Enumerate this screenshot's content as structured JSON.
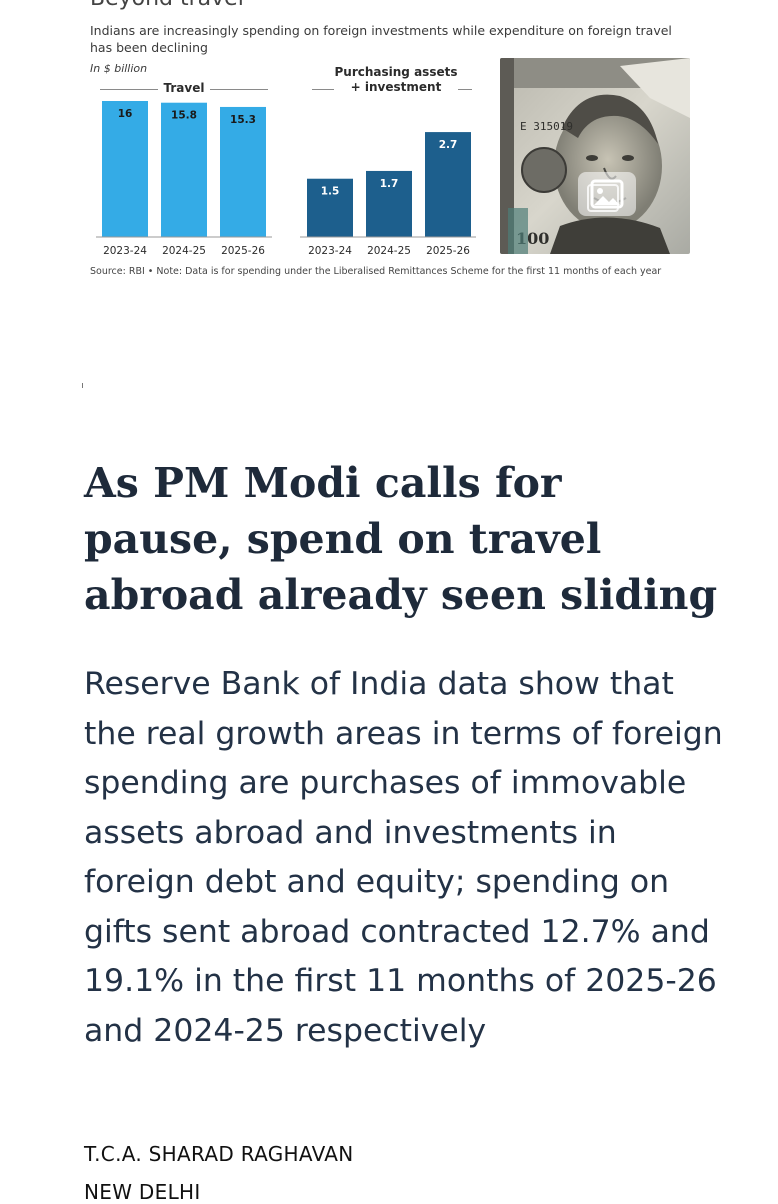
{
  "chart": {
    "title": "Beyond travel",
    "subtitle": "Indians are increasingly spending on foreign investments while expenditure on foreign travel has been declining",
    "unit": "In $ billion",
    "source": "Source: RBI • Note: Data is for spending under the Liberalised Remittances Scheme for the first 11 months of each year",
    "colors": {
      "travel": "#34abe6",
      "investment": "#1d5f8d"
    }
  },
  "chart_data": [
    {
      "type": "bar",
      "title": "Travel",
      "categories": [
        "2023-24",
        "2024-25",
        "2025-26"
      ],
      "values": [
        16,
        15.8,
        15.3
      ],
      "value_labels": [
        "16",
        "15.8",
        "15.3"
      ],
      "ylim": [
        0,
        16
      ]
    },
    {
      "type": "bar",
      "title": "Purchasing assets + investment",
      "title_lines": [
        "Purchasing assets",
        "+ investment"
      ],
      "categories": [
        "2023-24",
        "2024-25",
        "2025-26"
      ],
      "values": [
        1.5,
        1.7,
        2.7
      ],
      "value_labels": [
        "1.5",
        "1.7",
        "2.7"
      ],
      "ylim": [
        0,
        3.5
      ]
    }
  ],
  "photo": {
    "icon": "gallery-icon"
  },
  "article": {
    "headline": "As PM Modi calls for pause, spend on travel abroad already seen sliding",
    "summary": "Reserve Bank of India data show that the real growth areas in terms of foreign spending are purchases of immovable assets abroad and investments in foreign debt and equity; spending on gifts sent abroad contracted 12.7% and 19.1% in the first 11 months of 2025-26 and 2024-25 respectively",
    "byline": "T.C.A. SHARAD RAGHAVAN",
    "dateline": "NEW DELHI"
  }
}
